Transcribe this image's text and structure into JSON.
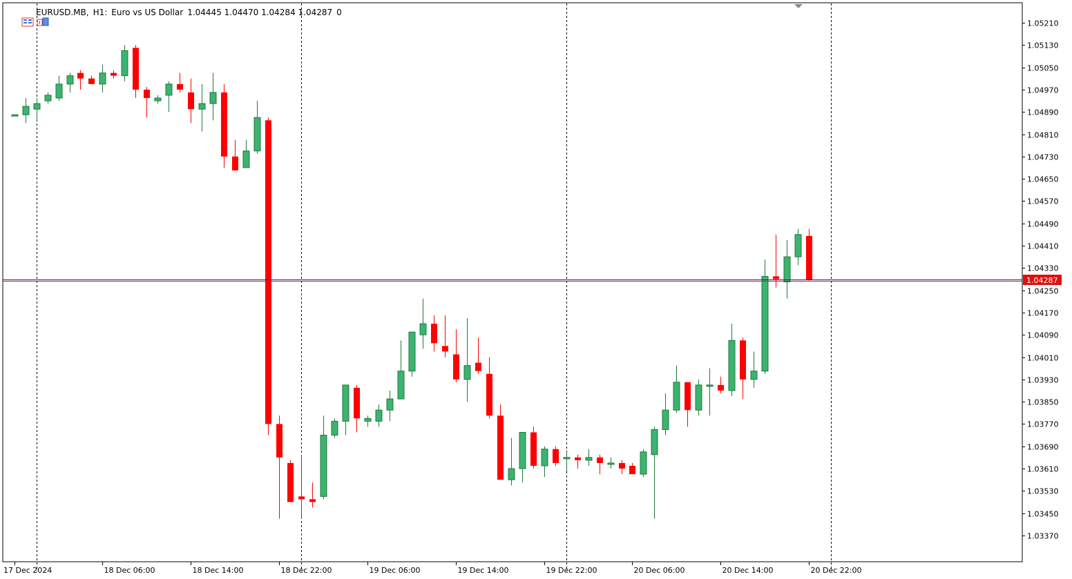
{
  "header": {
    "symbol": "EURUSD.MB,",
    "timeframe": "H1:",
    "description": "Euro vs US Dollar",
    "ohlc": "1.04445 1.04470 1.04284 1.04287",
    "volume": "0"
  },
  "price_badge": "1.04287",
  "icons": [
    "chart-menu-icon",
    "one-click-trading-icon",
    "shift-marker-icon"
  ],
  "colors": {
    "bull": "#3cb371",
    "bear": "#ff0000",
    "bid_line": "#1e1e8c",
    "ask_line": "#c81e1e",
    "badge": "#e01010"
  },
  "chart_data": {
    "type": "candlestick",
    "symbol": "EURUSD.MB",
    "timeframe": "H1",
    "ylim": [
      1.0333,
      1.0525
    ],
    "y_ticks": [
      "1.05210",
      "1.05130",
      "1.05050",
      "1.04970",
      "1.04890",
      "1.04810",
      "1.04730",
      "1.04650",
      "1.04570",
      "1.04490",
      "1.04410",
      "1.04330",
      "1.04250",
      "1.04170",
      "1.04090",
      "1.04010",
      "1.03930",
      "1.03850",
      "1.03770",
      "1.03690",
      "1.03610",
      "1.03530",
      "1.03450",
      "1.03370"
    ],
    "x_labels": [
      {
        "index": 0,
        "label": "17 Dec 2024"
      },
      {
        "index": 8,
        "label": "18 Dec 06:00"
      },
      {
        "index": 16,
        "label": "18 Dec 14:00"
      },
      {
        "index": 24,
        "label": "18 Dec 22:00"
      },
      {
        "index": 32,
        "label": "19 Dec 06:00"
      },
      {
        "index": 40,
        "label": "19 Dec 14:00"
      },
      {
        "index": 48,
        "label": "19 Dec 22:00"
      },
      {
        "index": 56,
        "label": "20 Dec 06:00"
      },
      {
        "index": 64,
        "label": "20 Dec 14:00"
      },
      {
        "index": 72,
        "label": "20 Dec 22:00"
      }
    ],
    "separators_at_index": [
      2,
      26,
      50,
      74
    ],
    "last_price": 1.04287,
    "grid": false,
    "candles": [
      [
        1.0488,
        1.0488,
        1.0488,
        1.0488
      ],
      [
        1.0488,
        1.0494,
        1.0485,
        1.0491
      ],
      [
        1.049,
        1.0494,
        1.0486,
        1.0492
      ],
      [
        1.0493,
        1.0496,
        1.0492,
        1.0495
      ],
      [
        1.0494,
        1.0502,
        1.0493,
        1.0499
      ],
      [
        1.0499,
        1.0503,
        1.0496,
        1.0502
      ],
      [
        1.0503,
        1.0504,
        1.0497,
        1.0501
      ],
      [
        1.0501,
        1.0502,
        1.0499,
        1.0499
      ],
      [
        1.0499,
        1.0506,
        1.0496,
        1.0503
      ],
      [
        1.0503,
        1.0504,
        1.0501,
        1.0502
      ],
      [
        1.0502,
        1.0513,
        1.05,
        1.0511
      ],
      [
        1.0512,
        1.0513,
        1.0494,
        1.0497
      ],
      [
        1.0497,
        1.0498,
        1.0487,
        1.0494
      ],
      [
        1.0493,
        1.0495,
        1.0492,
        1.0494
      ],
      [
        1.0495,
        1.05,
        1.0489,
        1.0499
      ],
      [
        1.0499,
        1.0503,
        1.0496,
        1.0497
      ],
      [
        1.0496,
        1.0501,
        1.0485,
        1.049
      ],
      [
        1.049,
        1.0499,
        1.0482,
        1.0492
      ],
      [
        1.0492,
        1.0503,
        1.0486,
        1.0496
      ],
      [
        1.0496,
        1.0499,
        1.0469,
        1.0473
      ],
      [
        1.0473,
        1.0479,
        1.0468,
        1.0468
      ],
      [
        1.0469,
        1.0479,
        1.0469,
        1.0475
      ],
      [
        1.0475,
        1.0493,
        1.0474,
        1.0487
      ],
      [
        1.0486,
        1.0487,
        1.0373,
        1.0377
      ],
      [
        1.0377,
        1.038,
        1.0343,
        1.0365
      ],
      [
        1.0363,
        1.0364,
        1.0349,
        1.0349
      ],
      [
        1.0351,
        1.0366,
        1.0343,
        1.035
      ],
      [
        1.035,
        1.0356,
        1.0347,
        1.0349
      ],
      [
        1.0351,
        1.038,
        1.035,
        1.0373
      ],
      [
        1.0373,
        1.0379,
        1.0372,
        1.0378
      ],
      [
        1.0378,
        1.0391,
        1.0373,
        1.0391
      ],
      [
        1.039,
        1.0391,
        1.0374,
        1.0379
      ],
      [
        1.0378,
        1.038,
        1.0376,
        1.0379
      ],
      [
        1.0378,
        1.0384,
        1.0376,
        1.0382
      ],
      [
        1.0382,
        1.0389,
        1.0378,
        1.0386
      ],
      [
        1.0386,
        1.0407,
        1.0386,
        1.0396
      ],
      [
        1.0396,
        1.041,
        1.0394,
        1.041
      ],
      [
        1.0409,
        1.0422,
        1.0404,
        1.0413
      ],
      [
        1.0413,
        1.0416,
        1.0403,
        1.0406
      ],
      [
        1.0405,
        1.0416,
        1.0401,
        1.0403
      ],
      [
        1.0402,
        1.0411,
        1.0392,
        1.0393
      ],
      [
        1.0393,
        1.0415,
        1.0385,
        1.0398
      ],
      [
        1.0399,
        1.0408,
        1.0395,
        1.0396
      ],
      [
        1.0395,
        1.0401,
        1.0379,
        1.038
      ],
      [
        1.038,
        1.0384,
        1.0357,
        1.0357
      ],
      [
        1.0357,
        1.0372,
        1.0355,
        1.0361
      ],
      [
        1.0361,
        1.0373,
        1.0356,
        1.0374
      ],
      [
        1.0374,
        1.0376,
        1.0361,
        1.0362
      ],
      [
        1.0362,
        1.0369,
        1.0358,
        1.0368
      ],
      [
        1.0368,
        1.0369,
        1.0362,
        1.0363
      ],
      [
        1.0365,
        1.0367,
        1.036,
        1.0365
      ],
      [
        1.0365,
        1.0366,
        1.0361,
        1.0364
      ],
      [
        1.0364,
        1.0368,
        1.0362,
        1.0365
      ],
      [
        1.0365,
        1.0366,
        1.0359,
        1.0363
      ],
      [
        1.0363,
        1.0365,
        1.0361,
        1.0363
      ],
      [
        1.0363,
        1.0364,
        1.0359,
        1.0361
      ],
      [
        1.0362,
        1.0363,
        1.0359,
        1.0359
      ],
      [
        1.0359,
        1.0368,
        1.0358,
        1.0367
      ],
      [
        1.0366,
        1.0376,
        1.0343,
        1.0375
      ],
      [
        1.0375,
        1.0388,
        1.0373,
        1.0382
      ],
      [
        1.0382,
        1.0398,
        1.0381,
        1.0392
      ],
      [
        1.0392,
        1.0392,
        1.0376,
        1.0382
      ],
      [
        1.0382,
        1.0393,
        1.038,
        1.0391
      ],
      [
        1.0391,
        1.0397,
        1.038,
        1.0391
      ],
      [
        1.0391,
        1.0394,
        1.0388,
        1.0389
      ],
      [
        1.0389,
        1.0413,
        1.0387,
        1.0407
      ],
      [
        1.0407,
        1.0408,
        1.0386,
        1.0393
      ],
      [
        1.0393,
        1.0403,
        1.039,
        1.0396
      ],
      [
        1.0396,
        1.0436,
        1.0395,
        1.043
      ],
      [
        1.043,
        1.0445,
        1.0426,
        1.0429
      ],
      [
        1.0428,
        1.0443,
        1.0422,
        1.0437
      ],
      [
        1.0437,
        1.0447,
        1.0434,
        1.0445
      ],
      [
        1.04445,
        1.0447,
        1.04284,
        1.04287
      ]
    ]
  }
}
